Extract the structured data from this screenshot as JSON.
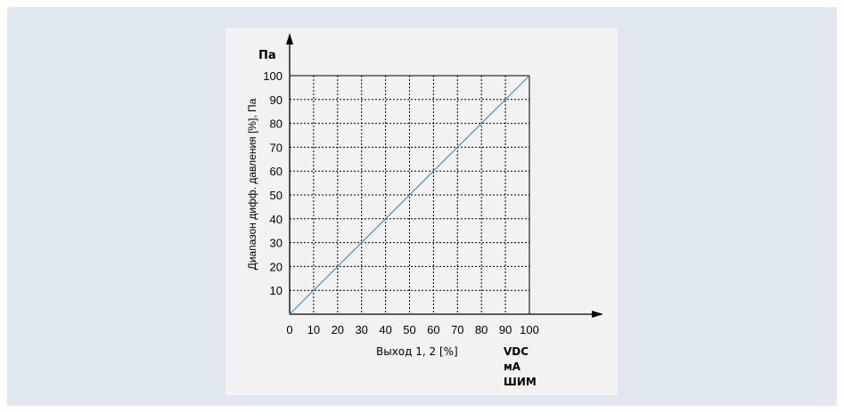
{
  "chart_data": {
    "type": "line",
    "y_unit_label": "Па",
    "ylabel": "Диапазон дифф. давления [%], Па",
    "xlabel": "Выход 1, 2 [%]",
    "x_unit_labels": [
      "VDC",
      "мА",
      "ШИМ"
    ],
    "x_ticks": [
      0,
      10,
      20,
      30,
      40,
      50,
      60,
      70,
      80,
      90,
      100
    ],
    "y_ticks": [
      10,
      20,
      30,
      40,
      50,
      60,
      70,
      80,
      90,
      100
    ],
    "xlim": [
      0,
      100
    ],
    "ylim": [
      0,
      100
    ],
    "grid": true,
    "series": [
      {
        "x": [
          0,
          100
        ],
        "y": [
          0,
          100
        ],
        "color": "#3d8fd1"
      }
    ]
  }
}
